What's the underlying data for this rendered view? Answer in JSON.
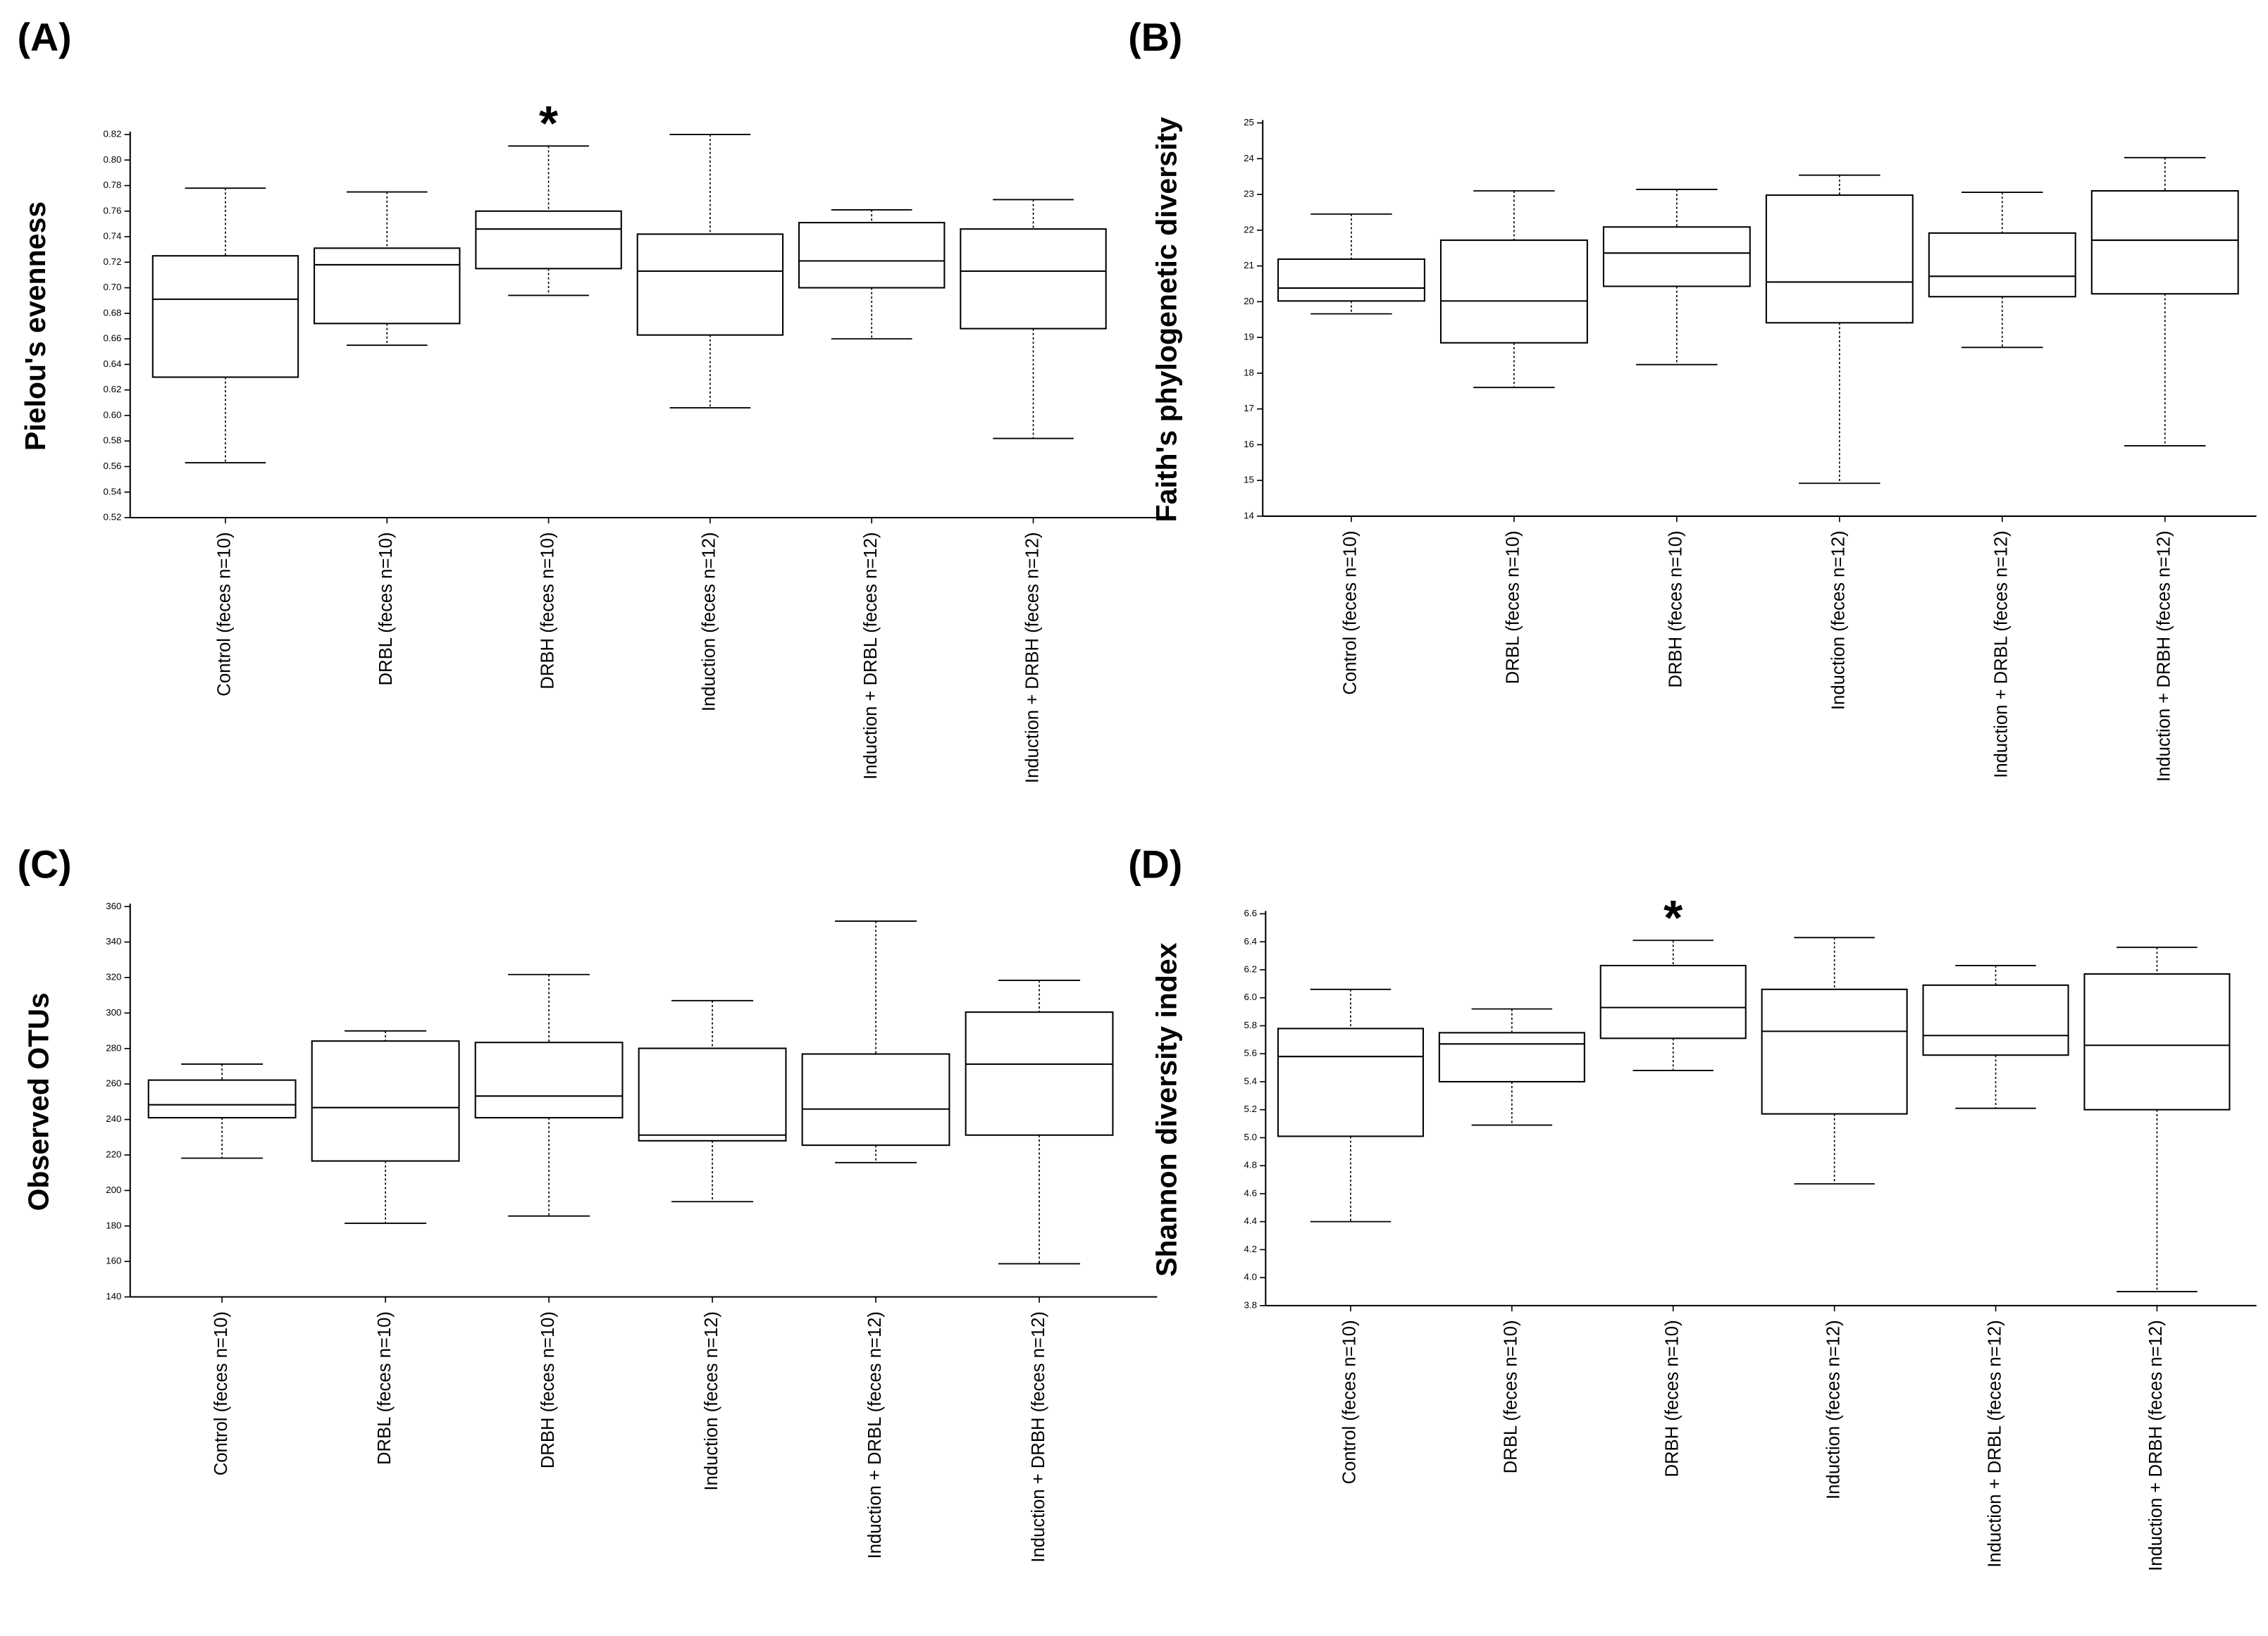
{
  "chart_data": [
    {
      "type": "box",
      "panel_label": "(A)",
      "y_label": "Pielou's evenness",
      "annotation": "*",
      "categories": [
        "Control (feces n=10)",
        "DRBL (feces n=10)",
        "DRBH (feces n=10)",
        "Induction (feces n=12)",
        "Induction + DRBL (feces n=12)",
        "Induction + DRBH (feces n=12)"
      ],
      "boxes": [
        {
          "min": 0.563,
          "q1": 0.63,
          "median": 0.691,
          "q3": 0.725,
          "max": 0.778
        },
        {
          "min": 0.655,
          "q1": 0.672,
          "median": 0.718,
          "q3": 0.731,
          "max": 0.775
        },
        {
          "min": 0.694,
          "q1": 0.715,
          "median": 0.746,
          "q3": 0.76,
          "max": 0.811
        },
        {
          "min": 0.606,
          "q1": 0.663,
          "median": 0.713,
          "q3": 0.742,
          "max": 0.82
        },
        {
          "min": 0.66,
          "q1": 0.7,
          "median": 0.721,
          "q3": 0.751,
          "max": 0.761
        },
        {
          "min": 0.582,
          "q1": 0.668,
          "median": 0.713,
          "q3": 0.746,
          "max": 0.769
        }
      ],
      "ylim": [
        0.52,
        0.82
      ],
      "yticks": [
        {
          "value": 0.52,
          "label": "0.52"
        },
        {
          "value": 0.54,
          "label": "0.54"
        },
        {
          "value": 0.56,
          "label": "0.56"
        },
        {
          "value": 0.58,
          "label": "0.58"
        },
        {
          "value": 0.6,
          "label": "0.60"
        },
        {
          "value": 0.62,
          "label": "0.62"
        },
        {
          "value": 0.64,
          "label": "0.64"
        },
        {
          "value": 0.66,
          "label": "0.66"
        },
        {
          "value": 0.68,
          "label": "0.68"
        },
        {
          "value": 0.7,
          "label": "0.70"
        },
        {
          "value": 0.72,
          "label": "0.72"
        },
        {
          "value": 0.74,
          "label": "0.74"
        },
        {
          "value": 0.76,
          "label": "0.76"
        },
        {
          "value": 0.78,
          "label": "0.78"
        },
        {
          "value": 0.8,
          "label": "0.80"
        },
        {
          "value": 0.82,
          "label": "0.82"
        }
      ]
    },
    {
      "type": "box",
      "panel_label": "(B)",
      "y_label": "Faith's phylogenetic diversity",
      "categories": [
        "Control (feces n=10)",
        "DRBL (feces n=10)",
        "DRBH (feces n=10)",
        "Induction (feces n=12)",
        "Induction + DRBL (feces n=12)",
        "Induction + DRBH (feces n=12)"
      ],
      "boxes": [
        {
          "min": 19.66,
          "q1": 20.02,
          "median": 20.38,
          "q3": 21.19,
          "max": 22.45
        },
        {
          "min": 17.6,
          "q1": 18.85,
          "median": 20.02,
          "q3": 21.72,
          "max": 23.1
        },
        {
          "min": 18.24,
          "q1": 20.43,
          "median": 21.36,
          "q3": 22.09,
          "max": 23.14
        },
        {
          "min": 14.92,
          "q1": 19.41,
          "median": 20.55,
          "q3": 22.98,
          "max": 23.54
        },
        {
          "min": 18.72,
          "q1": 20.14,
          "median": 20.71,
          "q3": 21.92,
          "max": 23.06
        },
        {
          "min": 15.97,
          "q1": 20.22,
          "median": 21.72,
          "q3": 23.1,
          "max": 24.03
        }
      ],
      "ylim": [
        14,
        25
      ],
      "yticks": [
        14,
        15,
        16,
        17,
        18,
        19,
        20,
        21,
        22,
        23,
        24,
        25
      ]
    },
    {
      "type": "box",
      "panel_label": "(C)",
      "y_label": "Observed OTUs",
      "categories": [
        "Control (feces n=10)",
        "DRBL (feces n=10)",
        "DRBH (feces n=10)",
        "Induction (feces n=12)",
        "Induction + DRBL (feces n=12)",
        "Induction + DRBH (feces n=12)"
      ],
      "boxes": [
        {
          "min": 218.2,
          "q1": 241,
          "median": 248.3,
          "q3": 262.2,
          "max": 271.2
        },
        {
          "min": 181.5,
          "q1": 216.6,
          "median": 246.7,
          "q3": 284.2,
          "max": 289.9
        },
        {
          "min": 185.6,
          "q1": 241,
          "median": 253.2,
          "q3": 283.4,
          "max": 321.7
        },
        {
          "min": 193.7,
          "q1": 228,
          "median": 231.2,
          "q3": 280.1,
          "max": 307
        },
        {
          "min": 215.7,
          "q1": 225.5,
          "median": 245.9,
          "q3": 276.9,
          "max": 351.8
        },
        {
          "min": 158.7,
          "q1": 231.2,
          "median": 271.2,
          "q3": 300.5,
          "max": 318.4
        }
      ],
      "ylim": [
        140,
        360
      ],
      "yticks": [
        140,
        160,
        180,
        200,
        220,
        240,
        260,
        280,
        300,
        320,
        340,
        360
      ]
    },
    {
      "type": "box",
      "panel_label": "(D)",
      "y_label": "Shannon diversity index",
      "annotation": "*",
      "categories": [
        "Control (feces n=10)",
        "DRBL (feces n=10)",
        "DRBH (feces n=10)",
        "Induction (feces n=12)",
        "Induction + DRBL (feces n=12)",
        "Induction + DRBH (feces n=12)"
      ],
      "boxes": [
        {
          "min": 4.4,
          "q1": 5.01,
          "median": 5.58,
          "q3": 5.78,
          "max": 6.06
        },
        {
          "min": 5.09,
          "q1": 5.4,
          "median": 5.67,
          "q3": 5.75,
          "max": 5.92
        },
        {
          "min": 5.48,
          "q1": 5.71,
          "median": 5.93,
          "q3": 6.23,
          "max": 6.41
        },
        {
          "min": 4.67,
          "q1": 5.17,
          "median": 5.76,
          "q3": 6.06,
          "max": 6.43
        },
        {
          "min": 5.21,
          "q1": 5.59,
          "median": 5.73,
          "q3": 6.09,
          "max": 6.23
        },
        {
          "min": 3.9,
          "q1": 5.2,
          "median": 5.66,
          "q3": 6.17,
          "max": 6.36
        }
      ],
      "ylim": [
        3.8,
        6.6
      ],
      "yticks": [
        {
          "value": 3.8,
          "label": "3.8"
        },
        {
          "value": 4,
          "label": "4.0"
        },
        {
          "value": 4.2,
          "label": "4.2"
        },
        {
          "value": 4.4,
          "label": "4.4"
        },
        {
          "value": 4.6,
          "label": "4.6"
        },
        {
          "value": 4.8,
          "label": "4.8"
        },
        {
          "value": 5,
          "label": "5.0"
        },
        {
          "value": 5.2,
          "label": "5.2"
        },
        {
          "value": 5.4,
          "label": "5.4"
        },
        {
          "value": 5.6,
          "label": "5.6"
        },
        {
          "value": 5.8,
          "label": "5.8"
        },
        {
          "value": 6,
          "label": "6.0"
        },
        {
          "value": 6.2,
          "label": "6.2"
        },
        {
          "value": 6.4,
          "label": "6.4"
        },
        {
          "value": 6.6,
          "label": "6.6"
        }
      ]
    }
  ]
}
